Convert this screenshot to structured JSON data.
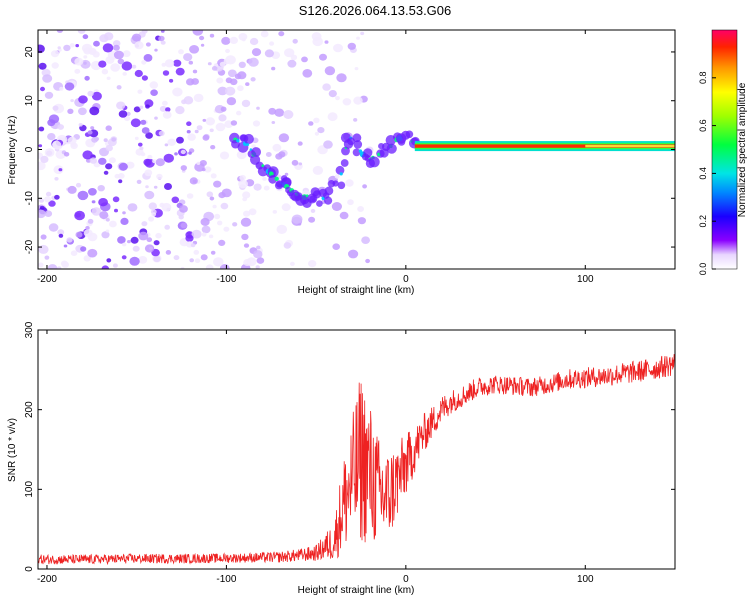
{
  "title": "S126.2026.064.13.53.G06",
  "chart_data": [
    {
      "type": "heatmap",
      "name": "spectrogram",
      "xlabel": "Height of straight line (km)",
      "ylabel": "Frequency (Hz)",
      "xlim": [
        -205,
        150
      ],
      "ylim": [
        -24.5,
        24.5
      ],
      "xticks": [
        -200,
        -100,
        0,
        100
      ],
      "yticks": [
        -20,
        -10,
        0,
        10,
        20
      ],
      "xtick_labels": [
        "-200",
        "-100",
        "0",
        "100"
      ],
      "ytick_labels": [
        "-20",
        "-10",
        "0",
        "10",
        "20"
      ],
      "colorbar": {
        "label": "Normalized spectral amplitude",
        "range": [
          0,
          1
        ],
        "ticks": [
          0.0,
          0.2,
          0.4,
          0.6,
          0.8
        ],
        "tick_labels": [
          "0.0",
          "0.2",
          "0.4",
          "0.6",
          "0.8"
        ]
      },
      "ridge": [
        {
          "x": -95,
          "y": 2
        },
        {
          "x": -88,
          "y": 1
        },
        {
          "x": -83,
          "y": -2
        },
        {
          "x": -78,
          "y": -4
        },
        {
          "x": -72,
          "y": -6
        },
        {
          "x": -65,
          "y": -8
        },
        {
          "x": -58,
          "y": -10
        },
        {
          "x": -52,
          "y": -9
        },
        {
          "x": -46,
          "y": -10
        },
        {
          "x": -40,
          "y": -8
        },
        {
          "x": -36,
          "y": -5
        },
        {
          "x": -32,
          "y": 3
        },
        {
          "x": -28,
          "y": 1
        },
        {
          "x": -24,
          "y": -1
        },
        {
          "x": -20,
          "y": -2
        },
        {
          "x": -15,
          "y": -1
        },
        {
          "x": -10,
          "y": 0
        },
        {
          "x": -5,
          "y": 2
        },
        {
          "x": 0,
          "y": 3
        },
        {
          "x": 5,
          "y": 1
        },
        {
          "x": 20,
          "y": 0.6
        },
        {
          "x": 60,
          "y": 0.6
        },
        {
          "x": 100,
          "y": 0.8
        },
        {
          "x": 150,
          "y": 1.0
        }
      ]
    },
    {
      "type": "line",
      "name": "snr",
      "xlabel": "Height of straight line (km)",
      "ylabel": "SNR (10 * v/v)",
      "xlim": [
        -205,
        150
      ],
      "ylim": [
        0,
        300
      ],
      "xticks": [
        -200,
        -100,
        0,
        100
      ],
      "yticks": [
        0,
        100,
        200,
        300
      ],
      "xtick_labels": [
        "-200",
        "-100",
        "0",
        "100"
      ],
      "ytick_labels": [
        "0",
        "100",
        "200",
        "300"
      ],
      "color": "#ee2222",
      "series": [
        {
          "name": "SNR",
          "x": [
            -205,
            -180,
            -150,
            -120,
            -90,
            -70,
            -60,
            -50,
            -40,
            -35,
            -30,
            -25,
            -20,
            -15,
            -10,
            -5,
            0,
            5,
            10,
            15,
            20,
            25,
            30,
            40,
            50,
            60,
            70,
            80,
            90,
            100,
            110,
            120,
            130,
            140,
            150
          ],
          "values": [
            12,
            12,
            13,
            13,
            14,
            15,
            17,
            20,
            35,
            80,
            110,
            140,
            120,
            95,
            90,
            110,
            130,
            150,
            170,
            185,
            200,
            210,
            215,
            228,
            232,
            230,
            228,
            232,
            238,
            240,
            242,
            245,
            248,
            252,
            258
          ],
          "noise": [
            6,
            6,
            6,
            6,
            6,
            7,
            8,
            10,
            25,
            60,
            80,
            110,
            90,
            70,
            60,
            50,
            40,
            30,
            25,
            20,
            18,
            15,
            14,
            13,
            12,
            12,
            12,
            12,
            13,
            13,
            13,
            14,
            14,
            14,
            15
          ]
        }
      ]
    }
  ]
}
